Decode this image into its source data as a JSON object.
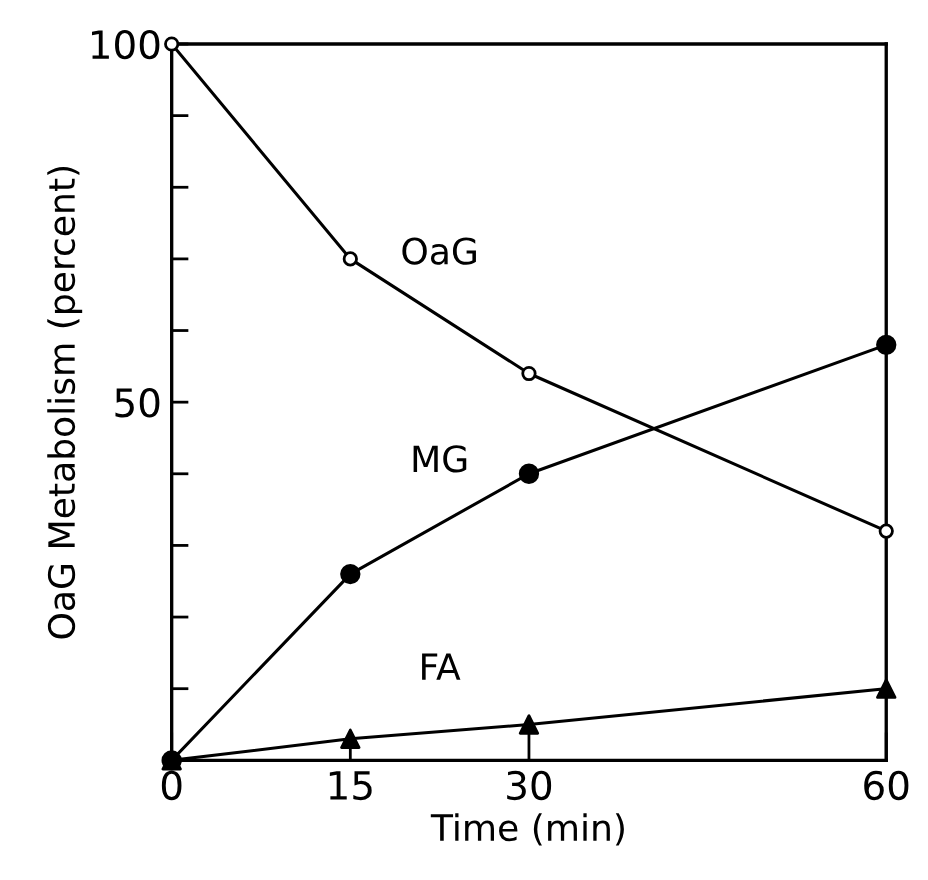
{
  "chart_data": {
    "type": "line",
    "xlabel": "Time (min)",
    "ylabel": "OaG Metabolism (percent)",
    "xlim": [
      0,
      60
    ],
    "xticks": [
      0,
      15,
      30,
      60
    ],
    "ylim": [
      0,
      100
    ],
    "yticks": [
      {
        "value": 0,
        "label": null
      },
      {
        "value": 10,
        "label": null
      },
      {
        "value": 20,
        "label": null
      },
      {
        "value": 30,
        "label": null
      },
      {
        "value": 40,
        "label": null
      },
      {
        "value": 50,
        "label": "50"
      },
      {
        "value": 60,
        "label": null
      },
      {
        "value": 70,
        "label": null
      },
      {
        "value": 80,
        "label": null
      },
      {
        "value": 90,
        "label": null
      },
      {
        "value": 100,
        "label": "100"
      }
    ],
    "grid": false,
    "line_style": "solid",
    "series": [
      {
        "name": "OaG",
        "color": "#000000",
        "marker": "circle",
        "colors": [
          "#ffffff",
          "#ffffff",
          "#ffffff",
          "#ffffff"
        ],
        "x": [
          0,
          15,
          30,
          60
        ],
        "values": [
          100,
          70,
          54,
          32
        ]
      },
      {
        "name": "MG",
        "color": "#000000",
        "marker": "circle",
        "x": [
          0,
          15,
          30,
          60
        ],
        "values": [
          0,
          26,
          40,
          58
        ]
      },
      {
        "name": "FA",
        "color": "#000000",
        "marker": "triangle",
        "x": [
          0,
          15,
          30,
          60
        ],
        "values": [
          0,
          3,
          5,
          10
        ]
      }
    ]
  }
}
